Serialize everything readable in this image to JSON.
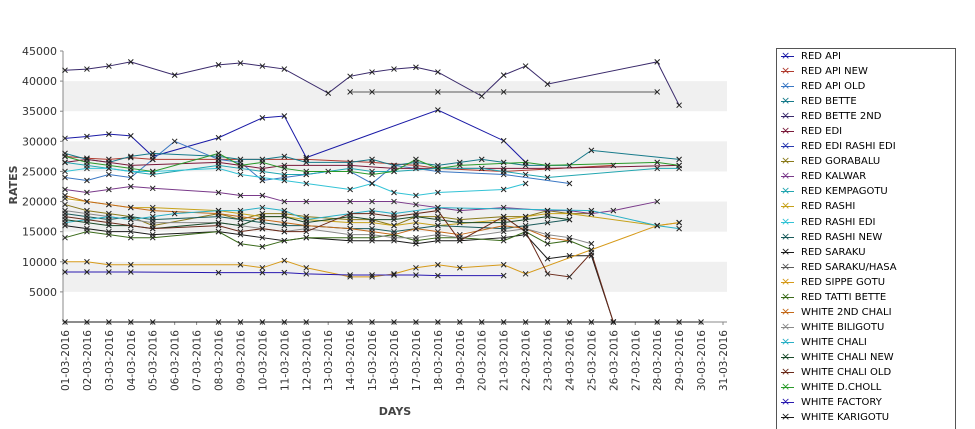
{
  "chart_data": {
    "type": "line",
    "title": "",
    "xlabel": "DAYS",
    "ylabel": "RATES",
    "ylim": [
      0,
      45000
    ],
    "yticks": [
      5000,
      10000,
      15000,
      20000,
      25000,
      30000,
      35000,
      40000,
      45000
    ],
    "categories": [
      "01-03-2016",
      "02-03-2016",
      "03-03-2016",
      "04-03-2016",
      "05-03-2016",
      "06-03-2016",
      "07-03-2016",
      "08-03-2016",
      "09-03-2016",
      "10-03-2016",
      "11-03-2016",
      "12-03-2016",
      "13-03-2016",
      "14-03-2016",
      "15-03-2016",
      "16-03-2016",
      "17-03-2016",
      "18-03-2016",
      "19-03-2016",
      "20-03-2016",
      "21-03-2016",
      "22-03-2016",
      "23-03-2016",
      "24-03-2016",
      "25-03-2016",
      "26-03-2016",
      "27-03-2016",
      "28-03-2016",
      "29-03-2016",
      "30-03-2016",
      "31-03-2016"
    ],
    "grid": "alternating horizontal bands",
    "legend_position": "right",
    "series": [
      {
        "name": "RED API",
        "color": "#1a1aa6",
        "values": [
          30500,
          30800,
          31200,
          30900,
          27500,
          null,
          null,
          30600,
          null,
          33900,
          34200,
          27300,
          null,
          null,
          null,
          null,
          null,
          35200,
          null,
          null,
          30100,
          26500,
          null,
          null,
          null,
          null,
          null,
          null,
          null,
          null,
          null
        ]
      },
      {
        "name": "RED API NEW",
        "color": "#b03a2e",
        "values": [
          27500,
          27200,
          27000,
          27300,
          27000,
          null,
          null,
          27000,
          null,
          null,
          null,
          27000,
          null,
          null,
          26500,
          null,
          26000,
          25500,
          null,
          null,
          25000,
          null,
          null,
          null,
          null,
          26000,
          null,
          null,
          null,
          null,
          null
        ]
      },
      {
        "name": "RED API OLD",
        "color": "#3b78c4",
        "values": [
          24000,
          23500,
          24500,
          24000,
          27000,
          30000,
          null,
          27000,
          26500,
          23500,
          24000,
          24500,
          25000,
          25000,
          23000,
          26000,
          25500,
          25000,
          null,
          null,
          24500,
          null,
          null,
          23000,
          null,
          null,
          null,
          null,
          null,
          null,
          null
        ]
      },
      {
        "name": "RED BETTE",
        "color": "#167a8a",
        "values": [
          28000,
          27000,
          26500,
          27500,
          28000,
          null,
          null,
          27500,
          27000,
          27000,
          27500,
          26500,
          null,
          26500,
          27000,
          26000,
          26500,
          26000,
          26500,
          27000,
          26500,
          26000,
          26000,
          26000,
          28500,
          null,
          null,
          null,
          27000,
          null,
          null
        ]
      },
      {
        "name": "RED BETTE 2ND",
        "color": "#3a2a6b",
        "values": [
          41800,
          42000,
          42500,
          43200,
          null,
          41000,
          null,
          42700,
          43000,
          42500,
          42000,
          null,
          38000,
          40800,
          41500,
          42000,
          42300,
          41500,
          null,
          37500,
          41000,
          42500,
          39500,
          null,
          null,
          null,
          null,
          43200,
          36000,
          null,
          null
        ]
      },
      {
        "name": "RED EDI",
        "color": "#7a1a3a",
        "values": [
          26500,
          27000,
          26500,
          26000,
          null,
          null,
          null,
          26500,
          26000,
          25500,
          26000,
          null,
          null,
          26000,
          null,
          25500,
          null,
          null,
          null,
          null,
          25500,
          null,
          25500,
          null,
          null,
          null,
          null,
          null,
          26000,
          null,
          null
        ]
      },
      {
        "name": "RED EDI RASHI EDI",
        "color": "#2a3ab0",
        "values": [
          null,
          null,
          null,
          null,
          null,
          null,
          null,
          null,
          null,
          null,
          null,
          null,
          null,
          null,
          null,
          null,
          null,
          null,
          null,
          null,
          null,
          null,
          null,
          null,
          null,
          null,
          null,
          null,
          null,
          null,
          null
        ]
      },
      {
        "name": "RED GORABALU",
        "color": "#8a7a1a",
        "values": [
          19500,
          18500,
          18000,
          17500,
          16000,
          null,
          null,
          18000,
          17000,
          18000,
          18000,
          17500,
          null,
          17000,
          17000,
          16000,
          17500,
          17500,
          17000,
          null,
          17500,
          17500,
          18500,
          18000,
          18000,
          null,
          null,
          null,
          null,
          null,
          null
        ]
      },
      {
        "name": "RED KALWAR",
        "color": "#7a3a8a",
        "values": [
          22000,
          21500,
          22000,
          22500,
          22200,
          null,
          null,
          21500,
          21000,
          21000,
          20000,
          20000,
          null,
          20000,
          20000,
          20000,
          19500,
          19000,
          18500,
          null,
          19000,
          null,
          18500,
          18500,
          18000,
          18500,
          null,
          20000,
          null,
          null,
          null
        ]
      },
      {
        "name": "RED KEMPAGOTU",
        "color": "#22a6b0",
        "values": [
          26500,
          26000,
          25500,
          25000,
          24500,
          null,
          null,
          26000,
          25500,
          25000,
          24500,
          24500,
          null,
          25500,
          25000,
          25000,
          null,
          25500,
          null,
          25500,
          25000,
          24500,
          24000,
          null,
          null,
          null,
          null,
          25500,
          25500,
          null,
          null
        ]
      },
      {
        "name": "RED RASHI",
        "color": "#c7a21a",
        "values": [
          20500,
          20000,
          19500,
          19000,
          19000,
          null,
          null,
          18500,
          18000,
          17500,
          17500,
          17000,
          null,
          16500,
          16500,
          16000,
          16500,
          16000,
          null,
          null,
          17000,
          17500,
          18000,
          18000,
          null,
          null,
          null,
          16000,
          16500,
          null,
          null
        ]
      },
      {
        "name": "RED RASHI EDI",
        "color": "#33c3d6",
        "values": [
          25000,
          25500,
          25500,
          25000,
          25000,
          null,
          null,
          25500,
          24500,
          24000,
          23500,
          23000,
          null,
          22000,
          23000,
          21500,
          21000,
          21500,
          null,
          null,
          22000,
          23000,
          null,
          null,
          null,
          null,
          null,
          null,
          null,
          null,
          null
        ]
      },
      {
        "name": "RED RASHI NEW",
        "color": "#1a5a5a",
        "values": [
          18000,
          17500,
          17000,
          17500,
          17000,
          null,
          null,
          17500,
          17000,
          16500,
          16000,
          16000,
          null,
          15500,
          15500,
          15000,
          15500,
          16000,
          null,
          null,
          15500,
          16000,
          16500,
          17000,
          null,
          null,
          null,
          null,
          null,
          null,
          null
        ]
      },
      {
        "name": "RED SARAKU",
        "color": "#1a1a1a",
        "values": [
          16000,
          15500,
          15000,
          15000,
          14500,
          null,
          null,
          15000,
          14500,
          14000,
          13500,
          14000,
          null,
          13500,
          13500,
          13500,
          13000,
          13500,
          13500,
          null,
          14000,
          14500,
          10500,
          11000,
          11000,
          0,
          null,
          null,
          null,
          null,
          null
        ]
      },
      {
        "name": "RED SARAKU/HASA",
        "color": "#5a5a5a",
        "values": [
          null,
          null,
          null,
          null,
          null,
          null,
          null,
          null,
          null,
          null,
          null,
          null,
          null,
          38200,
          38200,
          null,
          null,
          38200,
          null,
          null,
          38200,
          null,
          null,
          null,
          null,
          null,
          null,
          38200,
          null,
          null,
          null
        ]
      },
      {
        "name": "RED SIPPE GOTU",
        "color": "#d69a1a",
        "values": [
          10000,
          10000,
          9500,
          9500,
          null,
          null,
          null,
          null,
          9500,
          9000,
          10200,
          9000,
          null,
          7500,
          7500,
          8000,
          9000,
          9500,
          9000,
          null,
          9500,
          8000,
          null,
          null,
          null,
          null,
          null,
          16000,
          16500,
          null,
          null
        ]
      },
      {
        "name": "RED TATTI BETTE",
        "color": "#3a6a1a",
        "values": [
          14000,
          15000,
          14500,
          14000,
          14000,
          null,
          null,
          15000,
          13000,
          12500,
          13500,
          14000,
          null,
          14000,
          14000,
          14500,
          13500,
          14000,
          14000,
          null,
          13500,
          15000,
          13000,
          13500,
          12000,
          null,
          null,
          null,
          null,
          null,
          null
        ]
      },
      {
        "name": "WHITE 2ND CHALI",
        "color": "#c46a1a",
        "values": [
          21000,
          20000,
          19500,
          19000,
          18500,
          null,
          null,
          18000,
          17500,
          17000,
          16500,
          16000,
          null,
          15500,
          15000,
          14500,
          15500,
          15000,
          14500,
          null,
          16000,
          15500,
          14000,
          13500,
          null,
          null,
          null,
          null,
          null,
          null,
          null
        ]
      },
      {
        "name": "WHITE BILIGOTU",
        "color": "#8a8a8a",
        "values": [
          18500,
          18000,
          17500,
          17000,
          16500,
          null,
          null,
          16500,
          16000,
          15500,
          15000,
          15500,
          null,
          14500,
          14500,
          14000,
          14000,
          14500,
          14000,
          null,
          15000,
          15500,
          14500,
          14000,
          13000,
          null,
          null,
          null,
          null,
          null,
          null
        ]
      },
      {
        "name": "WHITE CHALI",
        "color": "#2ab0c6",
        "values": [
          16500,
          17000,
          17500,
          17000,
          17500,
          18000,
          null,
          18500,
          18500,
          19000,
          18500,
          17000,
          null,
          18000,
          18500,
          18000,
          null,
          19000,
          null,
          null,
          null,
          null,
          null,
          null,
          18500,
          null,
          null,
          16000,
          15500,
          null,
          null
        ]
      },
      {
        "name": "WHITE CHALI NEW",
        "color": "#1a4a2a",
        "values": [
          17000,
          16500,
          16000,
          16000,
          15500,
          null,
          null,
          16500,
          16000,
          17500,
          17500,
          16500,
          null,
          17500,
          17000,
          17000,
          17500,
          17000,
          16500,
          null,
          16500,
          17000,
          17500,
          17000,
          null,
          null,
          null,
          null,
          null,
          null,
          null
        ]
      },
      {
        "name": "WHITE CHALI OLD",
        "color": "#6a2a1a",
        "values": [
          17500,
          17000,
          16500,
          16000,
          15500,
          null,
          null,
          16000,
          15000,
          15500,
          15000,
          15000,
          null,
          18000,
          18000,
          17500,
          18000,
          18500,
          13500,
          null,
          17500,
          15000,
          8000,
          7500,
          11500,
          0,
          null,
          null,
          null,
          null,
          null
        ]
      },
      {
        "name": "WHITE D.CHOLL",
        "color": "#2a9a2a",
        "values": [
          27500,
          26500,
          26000,
          25500,
          25000,
          null,
          null,
          28000,
          26000,
          26500,
          25500,
          25000,
          null,
          25000,
          24500,
          25000,
          27000,
          25500,
          26000,
          null,
          null,
          26500,
          26000,
          null,
          null,
          null,
          null,
          26500,
          26000,
          null,
          null
        ]
      },
      {
        "name": "WHITE FACTORY",
        "color": "#2a1ab0",
        "values": [
          8300,
          8300,
          8300,
          8300,
          null,
          null,
          null,
          8200,
          null,
          8200,
          8200,
          8000,
          null,
          7800,
          7800,
          7800,
          7800,
          7700,
          null,
          null,
          7700,
          null,
          null,
          null,
          null,
          null,
          null,
          null,
          null,
          null,
          null
        ]
      },
      {
        "name": "WHITE KARIGOTU",
        "color": "#1a1a1a",
        "values": [
          0,
          0,
          0,
          0,
          0,
          null,
          null,
          0,
          0,
          0,
          0,
          0,
          null,
          0,
          0,
          0,
          0,
          0,
          0,
          0,
          0,
          0,
          0,
          0,
          0,
          0,
          null,
          0,
          0,
          0,
          null
        ]
      }
    ]
  }
}
